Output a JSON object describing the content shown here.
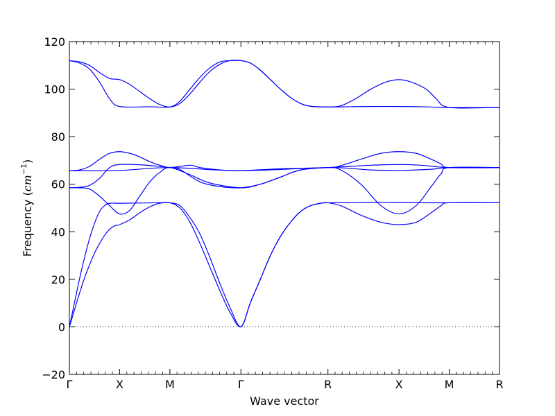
{
  "chart_data": {
    "type": "line",
    "title": "",
    "xlabel": "Wave vector",
    "ylabel": "Frequency (cm⁻¹)",
    "ylabel_parts": {
      "prefix": "Frequency (",
      "unit": "cm",
      "exponent": "−1",
      "suffix": ")"
    },
    "ylim": [
      -20,
      120
    ],
    "yticks": [
      -20,
      0,
      20,
      40,
      60,
      80,
      100,
      120
    ],
    "ytick_labels": [
      "−20",
      "0",
      "20",
      "40",
      "60",
      "80",
      "100",
      "120"
    ],
    "grid": false,
    "zero_line": {
      "y": 0,
      "style": "dotted"
    },
    "line_color": "#0000ff",
    "high_symmetry_points": [
      {
        "label": "Γ",
        "x": 0.0
      },
      {
        "label": "X",
        "x": 0.5
      },
      {
        "label": "M",
        "x": 1.0
      },
      {
        "label": "Γ",
        "x": 1.707
      },
      {
        "label": "R",
        "x": 2.573
      },
      {
        "label": "X",
        "x": 3.28
      },
      {
        "label": "M",
        "x": 3.78
      },
      {
        "label": "R",
        "x": 4.28
      }
    ],
    "series": [
      {
        "points": [
          [
            0,
            0
          ],
          [
            0.05,
            7
          ],
          [
            0.1,
            14
          ],
          [
            0.15,
            20.5
          ],
          [
            0.2,
            26
          ],
          [
            0.25,
            31
          ],
          [
            0.3,
            35
          ],
          [
            0.35,
            38.5
          ],
          [
            0.4,
            41
          ],
          [
            0.45,
            42.5
          ],
          [
            0.5,
            43
          ],
          [
            0.6,
            45
          ],
          [
            0.7,
            48
          ],
          [
            0.8,
            50.5
          ],
          [
            0.9,
            52
          ],
          [
            1.0,
            52.2
          ],
          [
            1.1,
            51
          ],
          [
            1.2,
            46
          ],
          [
            1.3,
            39
          ],
          [
            1.4,
            29
          ],
          [
            1.5,
            18
          ],
          [
            1.6,
            8
          ],
          [
            1.707,
            0
          ],
          [
            1.8,
            10
          ],
          [
            1.9,
            20
          ],
          [
            2.0,
            30
          ],
          [
            2.1,
            38
          ],
          [
            2.2,
            44
          ],
          [
            2.3,
            48.5
          ],
          [
            2.4,
            51
          ],
          [
            2.5,
            52
          ],
          [
            2.573,
            52.2
          ],
          [
            2.8,
            52.2
          ],
          [
            3.0,
            52.3
          ],
          [
            3.28,
            52.3
          ],
          [
            3.5,
            52.2
          ],
          [
            3.78,
            52.2
          ],
          [
            4.28,
            52.2
          ]
        ]
      },
      {
        "points": [
          [
            0,
            0
          ],
          [
            0.05,
            10
          ],
          [
            0.1,
            20
          ],
          [
            0.15,
            29
          ],
          [
            0.2,
            37
          ],
          [
            0.25,
            43.5
          ],
          [
            0.3,
            48.5
          ],
          [
            0.35,
            51
          ],
          [
            0.4,
            52
          ],
          [
            0.5,
            52
          ],
          [
            0.7,
            52.1
          ],
          [
            0.9,
            52.2
          ],
          [
            1.0,
            52.2
          ],
          [
            1.1,
            50
          ],
          [
            1.2,
            44
          ],
          [
            1.3,
            35
          ],
          [
            1.4,
            25
          ],
          [
            1.5,
            15
          ],
          [
            1.6,
            6
          ],
          [
            1.707,
            0
          ],
          [
            1.8,
            10
          ],
          [
            1.9,
            20
          ],
          [
            2.0,
            30
          ],
          [
            2.1,
            38
          ],
          [
            2.2,
            44
          ],
          [
            2.3,
            48.5
          ],
          [
            2.4,
            51
          ],
          [
            2.5,
            52
          ],
          [
            2.573,
            52.2
          ],
          [
            2.7,
            51
          ],
          [
            2.9,
            47
          ],
          [
            3.1,
            44
          ],
          [
            3.28,
            43
          ],
          [
            3.45,
            44
          ],
          [
            3.6,
            48
          ],
          [
            3.7,
            51
          ],
          [
            3.78,
            52.2
          ],
          [
            4.28,
            52.2
          ]
        ]
      },
      {
        "points": [
          [
            0,
            58.5
          ],
          [
            0.1,
            58.5
          ],
          [
            0.2,
            58
          ],
          [
            0.3,
            55
          ],
          [
            0.4,
            51
          ],
          [
            0.5,
            47.5
          ],
          [
            0.6,
            49
          ],
          [
            0.7,
            55
          ],
          [
            0.8,
            61
          ],
          [
            0.9,
            65
          ],
          [
            1.0,
            67
          ],
          [
            1.2,
            64
          ],
          [
            1.4,
            60.5
          ],
          [
            1.707,
            58.5
          ],
          [
            1.9,
            60
          ],
          [
            2.1,
            63
          ],
          [
            2.3,
            66
          ],
          [
            2.573,
            67
          ],
          [
            2.7,
            66
          ],
          [
            2.9,
            60
          ],
          [
            3.1,
            51
          ],
          [
            3.28,
            47.5
          ],
          [
            3.45,
            51
          ],
          [
            3.6,
            59
          ],
          [
            3.7,
            64.5
          ],
          [
            3.78,
            67
          ],
          [
            4.28,
            67
          ]
        ]
      },
      {
        "points": [
          [
            0,
            58.5
          ],
          [
            0.1,
            58.7
          ],
          [
            0.2,
            59.5
          ],
          [
            0.3,
            62.5
          ],
          [
            0.4,
            67
          ],
          [
            0.5,
            68.3
          ],
          [
            0.7,
            68.2
          ],
          [
            0.9,
            67.5
          ],
          [
            1.0,
            67
          ],
          [
            1.1,
            66.2
          ],
          [
            1.3,
            61
          ],
          [
            1.5,
            59
          ],
          [
            1.707,
            58.5
          ],
          [
            1.9,
            60
          ],
          [
            2.1,
            63
          ],
          [
            2.3,
            66
          ],
          [
            2.573,
            67
          ],
          [
            2.8,
            67.5
          ],
          [
            3.0,
            68
          ],
          [
            3.28,
            68.3
          ],
          [
            3.5,
            68
          ],
          [
            3.78,
            67
          ],
          [
            4.28,
            67
          ]
        ]
      },
      {
        "points": [
          [
            0,
            65.7
          ],
          [
            0.5,
            65.8
          ],
          [
            1.0,
            67
          ],
          [
            1.707,
            65.7
          ],
          [
            2.573,
            67
          ],
          [
            3.0,
            66
          ],
          [
            3.28,
            65.8
          ],
          [
            3.6,
            66.3
          ],
          [
            3.78,
            67
          ],
          [
            4.28,
            67
          ]
        ]
      },
      {
        "points": [
          [
            0,
            65.7
          ],
          [
            0.1,
            66
          ],
          [
            0.2,
            67.5
          ],
          [
            0.3,
            70.5
          ],
          [
            0.4,
            73
          ],
          [
            0.5,
            73.7
          ],
          [
            0.6,
            73
          ],
          [
            0.7,
            71.5
          ],
          [
            0.8,
            69.5
          ],
          [
            0.9,
            68
          ],
          [
            1.0,
            67
          ],
          [
            1.2,
            68
          ],
          [
            1.3,
            67
          ],
          [
            1.5,
            66
          ],
          [
            1.707,
            65.7
          ],
          [
            2.1,
            66.5
          ],
          [
            2.573,
            67
          ],
          [
            2.7,
            67.8
          ],
          [
            2.9,
            70.5
          ],
          [
            3.1,
            73
          ],
          [
            3.28,
            73.7
          ],
          [
            3.45,
            73
          ],
          [
            3.6,
            70.5
          ],
          [
            3.7,
            68.5
          ],
          [
            3.78,
            67
          ],
          [
            4.28,
            67
          ]
        ]
      },
      {
        "points": [
          [
            0,
            112
          ],
          [
            0.1,
            111
          ],
          [
            0.2,
            108.5
          ],
          [
            0.3,
            103
          ],
          [
            0.4,
            96
          ],
          [
            0.5,
            92.7
          ],
          [
            0.8,
            92.6
          ],
          [
            1.0,
            92.5
          ],
          [
            1.1,
            95
          ],
          [
            1.2,
            100
          ],
          [
            1.3,
            105
          ],
          [
            1.4,
            109
          ],
          [
            1.5,
            111.5
          ],
          [
            1.6,
            112
          ],
          [
            1.707,
            112
          ],
          [
            1.8,
            111
          ],
          [
            1.9,
            108
          ],
          [
            2.0,
            104
          ],
          [
            2.1,
            100
          ],
          [
            2.2,
            96.5
          ],
          [
            2.3,
            94
          ],
          [
            2.4,
            92.8
          ],
          [
            2.573,
            92.5
          ],
          [
            2.8,
            92.6
          ],
          [
            3.0,
            92.7
          ],
          [
            3.28,
            92.7
          ],
          [
            3.5,
            92.6
          ],
          [
            3.78,
            92.3
          ],
          [
            4.28,
            92.3
          ]
        ]
      },
      {
        "points": [
          [
            0,
            112
          ],
          [
            0.1,
            111.5
          ],
          [
            0.2,
            110
          ],
          [
            0.3,
            107
          ],
          [
            0.4,
            104.5
          ],
          [
            0.5,
            104
          ],
          [
            0.6,
            102
          ],
          [
            0.7,
            99
          ],
          [
            0.8,
            96
          ],
          [
            0.9,
            93.5
          ],
          [
            1.0,
            92.5
          ],
          [
            1.1,
            94
          ],
          [
            1.2,
            98
          ],
          [
            1.3,
            103
          ],
          [
            1.4,
            107.5
          ],
          [
            1.5,
            110.5
          ],
          [
            1.6,
            112
          ],
          [
            1.707,
            112
          ],
          [
            1.8,
            111
          ],
          [
            1.9,
            108
          ],
          [
            2.0,
            104
          ],
          [
            2.1,
            100
          ],
          [
            2.2,
            96.5
          ],
          [
            2.3,
            94
          ],
          [
            2.4,
            92.8
          ],
          [
            2.573,
            92.5
          ],
          [
            2.7,
            93
          ],
          [
            2.85,
            96
          ],
          [
            3.0,
            100
          ],
          [
            3.15,
            103
          ],
          [
            3.28,
            104
          ],
          [
            3.4,
            103
          ],
          [
            3.55,
            100
          ],
          [
            3.65,
            96
          ],
          [
            3.78,
            92.3
          ],
          [
            4.28,
            92.3
          ]
        ]
      }
    ]
  }
}
